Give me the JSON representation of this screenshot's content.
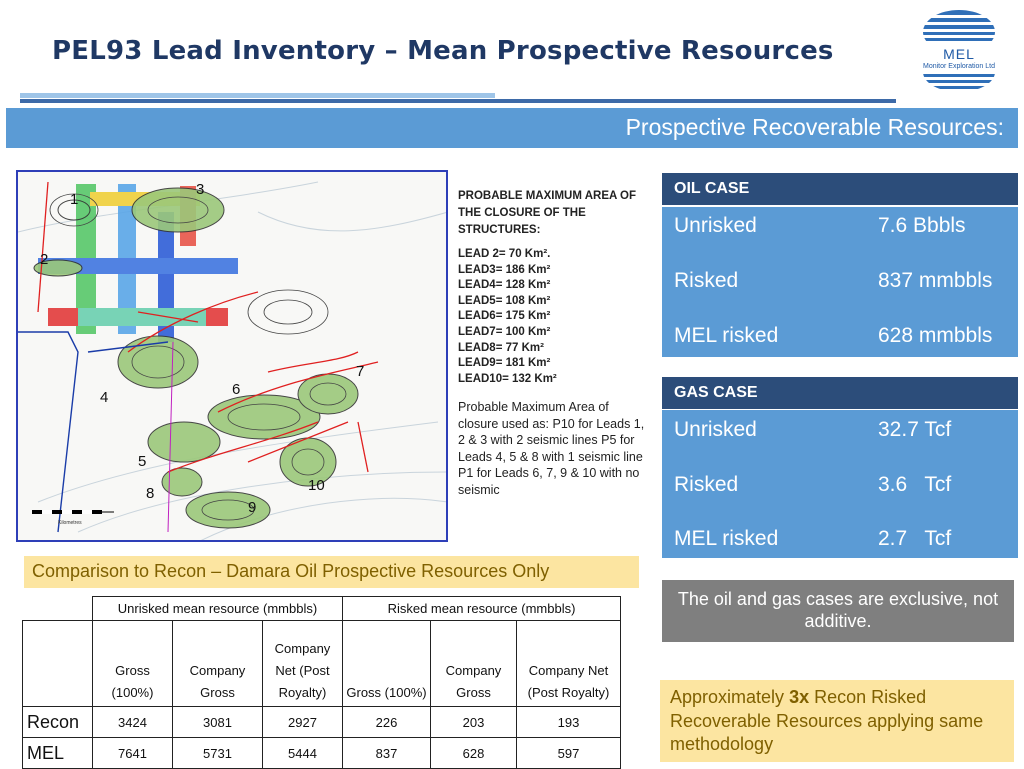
{
  "header": {
    "title": "PEL93 Lead Inventory – Mean Prospective Resources",
    "logo_text": "MEL",
    "logo_sub": "Monitor Exploration Ltd"
  },
  "banner": {
    "text": "Prospective Recoverable Resources:"
  },
  "map": {
    "lead_labels": [
      "1",
      "2",
      "3",
      "4",
      "5",
      "6",
      "7",
      "8",
      "9",
      "10"
    ],
    "scale_text": "Kilometres"
  },
  "notes": {
    "heading": "PROBABLE MAXIMUM AREA OF THE CLOSURE OF THE STRUCTURES:",
    "areas": [
      "LEAD 2= 70 Km².",
      "LEAD3= 186 Km²",
      "LEAD4= 128 Km²",
      "LEAD5= 108 Km²",
      "LEAD6= 175 Km²",
      "LEAD7= 100 Km²",
      "LEAD8= 77 Km²",
      "LEAD9= 181 Km²",
      "LEAD10= 132 Km²"
    ],
    "usage": "Probable Maximum Area of closure used as: P10 for Leads 1, 2 & 3 with 2 seismic lines P5 for Leads 4, 5 & 8 with 1 seismic line P1 for Leads 6, 7, 9 & 10 with no seismic"
  },
  "oil_case": {
    "title": "OIL CASE",
    "rows": [
      {
        "label": "Unrisked",
        "value": "7.6 Bbbls"
      },
      {
        "label": "Risked",
        "value": "837 mmbbls"
      },
      {
        "label": "MEL risked",
        "value": "628 mmbbls"
      }
    ]
  },
  "gas_case": {
    "title": "GAS CASE",
    "rows": [
      {
        "label": "Unrisked",
        "value": "32.7 Tcf"
      },
      {
        "label": "Risked",
        "value": "3.6   Tcf"
      },
      {
        "label": "MEL risked",
        "value": "2.7   Tcf"
      }
    ]
  },
  "exclusive_note": "The oil and gas cases are exclusive, not additive.",
  "callout": {
    "prefix": "Approximately ",
    "bold": "3x",
    "suffix": " Recon Risked Recoverable Resources applying same methodology"
  },
  "comparison": {
    "title": "Comparison to Recon – Damara Oil Prospective Resources Only",
    "group_headers": [
      "Unrisked mean resource (mmbbls)",
      "Risked mean resource (mmbbls)"
    ],
    "columns": [
      "Gross (100%)",
      "Company Gross",
      "Company Net (Post Royalty)",
      "Gross (100%)",
      "Company Gross",
      "Company Net (Post Royalty)"
    ],
    "rows": [
      {
        "label": "Recon",
        "values": [
          "3424",
          "3081",
          "2927",
          "226",
          "203",
          "193"
        ]
      },
      {
        "label": "MEL",
        "values": [
          "7641",
          "5731",
          "5444",
          "837",
          "628",
          "597"
        ]
      }
    ]
  },
  "colors": {
    "title": "#1f3864",
    "banner": "#5b9bd5",
    "case_header": "#2c4d7a",
    "note_grey": "#7f7f7f",
    "callout_yellow": "#fce5a1"
  }
}
